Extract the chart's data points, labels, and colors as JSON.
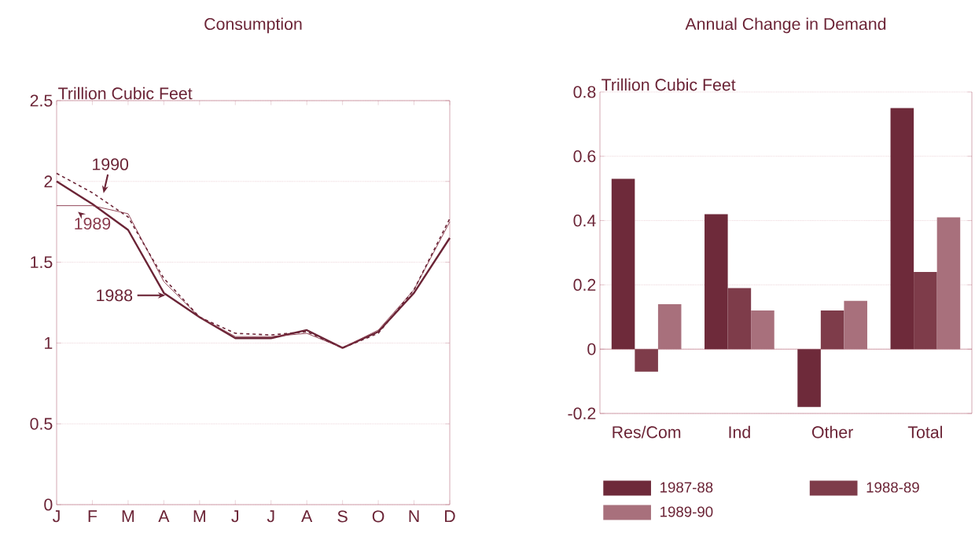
{
  "chart_data": [
    {
      "type": "line",
      "title": "Consumption",
      "ylabel": "Trillion Cubic Feet",
      "categories": [
        "J",
        "F",
        "M",
        "A",
        "M",
        "J",
        "J",
        "A",
        "S",
        "O",
        "N",
        "D"
      ],
      "series": [
        {
          "name": "1988",
          "color": "#6b2436",
          "line_style": "solid",
          "values": [
            2.0,
            1.86,
            1.7,
            1.31,
            1.16,
            1.03,
            1.03,
            1.08,
            0.97,
            1.07,
            1.31,
            1.65
          ]
        },
        {
          "name": "1989",
          "color": "#8a3a4c",
          "line_style": "solid",
          "values": [
            1.85,
            1.85,
            1.8,
            1.38,
            1.16,
            1.04,
            1.04,
            1.06,
            0.97,
            1.08,
            1.33,
            1.75
          ]
        },
        {
          "name": "1990",
          "color": "#6b2436",
          "line_style": "dashed",
          "values": [
            2.05,
            1.93,
            1.78,
            1.4,
            1.16,
            1.06,
            1.05,
            1.07,
            0.97,
            1.06,
            1.33,
            1.77
          ]
        }
      ],
      "ylim": [
        0,
        2.5
      ],
      "yticks": [
        {
          "value": 0,
          "label": "0"
        },
        0.5,
        {
          "value": 1,
          "label": "1"
        },
        1.5,
        {
          "value": 2,
          "label": "2"
        },
        2.5
      ],
      "grid": "y",
      "marker": "none"
    },
    {
      "type": "bar",
      "title": "Annual Change in Demand",
      "ylabel": "Trillion Cubic Feet",
      "categories": [
        "Res/Com",
        "Ind",
        "Other",
        "Total"
      ],
      "series": [
        {
          "name": "1987-88",
          "color": "#6e2a3a",
          "values": [
            0.53,
            0.42,
            -0.18,
            0.75
          ]
        },
        {
          "name": "1988-89",
          "color": "#7e3c4a",
          "values": [
            -0.07,
            0.19,
            0.12,
            0.24
          ]
        },
        {
          "name": "1989-90",
          "color": "#a8707c",
          "values": [
            0.14,
            0.12,
            0.15,
            0.41
          ]
        }
      ],
      "ylim": [
        -0.2,
        0.8
      ],
      "yticks": [
        -0.2,
        {
          "value": 0,
          "label": "0"
        },
        0.2,
        0.4,
        0.6,
        0.8
      ],
      "grid": "y",
      "legend": "bottom",
      "ref_lines": [
        {
          "axis": "y",
          "value": 0,
          "color": "#b05a70",
          "line_style": "solid"
        }
      ]
    }
  ]
}
